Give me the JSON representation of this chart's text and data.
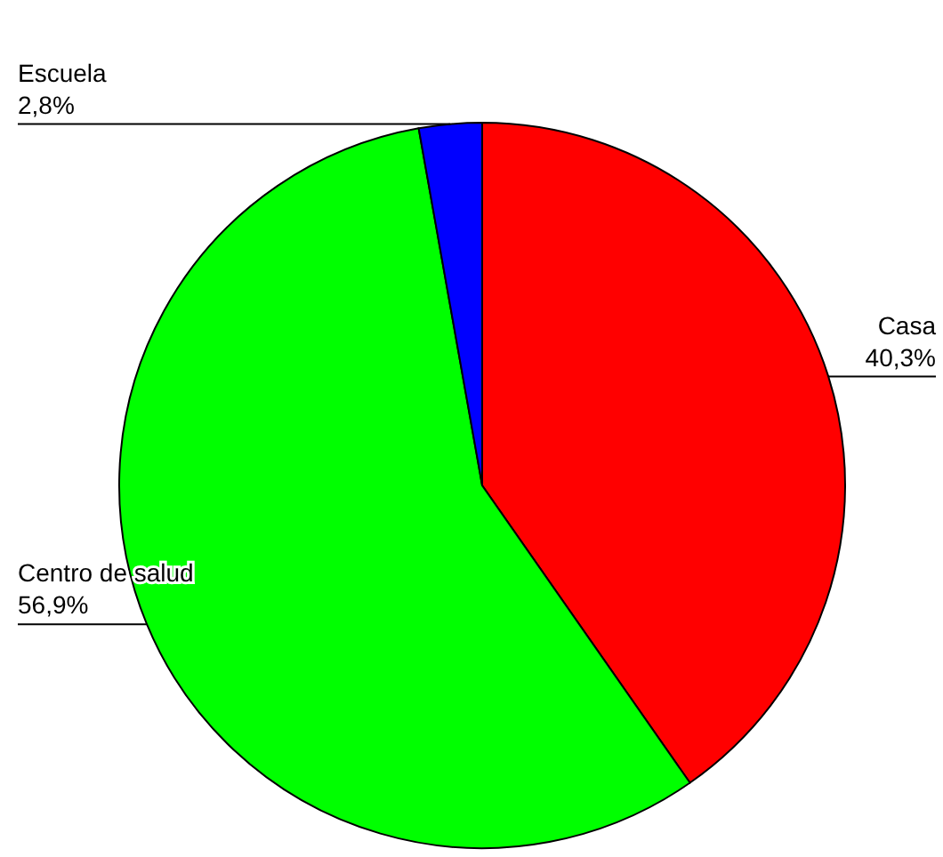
{
  "chart_data": {
    "type": "pie",
    "categories": [
      "Casa",
      "Centro de salud",
      "Escuela"
    ],
    "values": [
      40.3,
      56.9,
      2.8
    ],
    "colors": [
      "#ff0000",
      "#00ff00",
      "#0000ff"
    ],
    "value_labels": [
      "40,3%",
      "56,9%",
      "2,8%"
    ]
  }
}
